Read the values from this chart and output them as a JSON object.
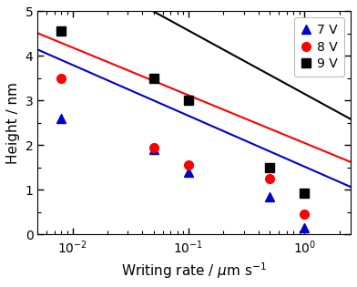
{
  "series": [
    {
      "label": "7 V",
      "color": "#0000cc",
      "marker": "^",
      "x_data": [
        0.008,
        0.05,
        0.1,
        0.5,
        1.0
      ],
      "y_data": [
        2.6,
        1.9,
        1.4,
        0.85,
        0.15
      ],
      "fit_params": [
        1.52,
        -1.14
      ]
    },
    {
      "label": "8 V",
      "color": "#ff0000",
      "marker": "o",
      "x_data": [
        0.008,
        0.05,
        0.1,
        0.5,
        1.0
      ],
      "y_data": [
        3.5,
        1.95,
        1.55,
        1.25,
        0.45
      ],
      "fit_params": [
        2.05,
        -1.07
      ]
    },
    {
      "label": "9 V",
      "color": "#000000",
      "marker": "s",
      "x_data": [
        0.008,
        0.05,
        0.1,
        0.5,
        1.0
      ],
      "y_data": [
        4.55,
        3.5,
        3.0,
        1.5,
        0.92
      ],
      "fit_params": [
        3.15,
        -1.42
      ]
    }
  ],
  "xlabel": "Writing rate / $\\mu$m s$^{-1}$",
  "ylabel": "Height / nm",
  "xlim": [
    0.005,
    2.5
  ],
  "ylim": [
    0,
    5
  ],
  "yticks": [
    0,
    1,
    2,
    3,
    4,
    5
  ],
  "fit_x_start": 0.005,
  "fit_x_end": 2.5,
  "background_color": "#ffffff",
  "legend_loc": "upper right"
}
